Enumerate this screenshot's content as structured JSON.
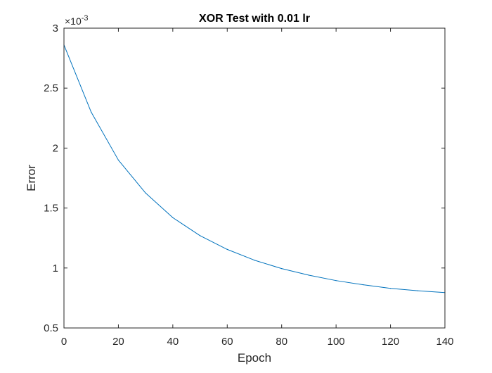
{
  "chart_data": {
    "type": "line",
    "title": "XOR Test with 0.01 lr",
    "xlabel": "Epoch",
    "ylabel": "Error",
    "y_exponent_label": "×10",
    "y_exponent_power": "-3",
    "xlim": [
      0,
      140
    ],
    "ylim": [
      0.5,
      3
    ],
    "x_ticks": [
      0,
      20,
      40,
      60,
      80,
      100,
      120,
      140
    ],
    "y_ticks": [
      0.5,
      1,
      1.5,
      2,
      2.5,
      3
    ],
    "x_tick_labels": [
      "0",
      "20",
      "40",
      "60",
      "80",
      "100",
      "120",
      "140"
    ],
    "y_tick_labels": [
      "0.5",
      "1",
      "1.5",
      "2",
      "2.5",
      "3"
    ],
    "grid": false,
    "series": [
      {
        "color": "#0072BD",
        "x": [
          0,
          10,
          20,
          30,
          40,
          50,
          60,
          70,
          80,
          90,
          100,
          110,
          120,
          130,
          140
        ],
        "y": [
          2.86,
          2.3,
          1.9,
          1.625,
          1.42,
          1.27,
          1.155,
          1.065,
          0.995,
          0.94,
          0.895,
          0.86,
          0.83,
          0.81,
          0.795
        ]
      }
    ]
  }
}
